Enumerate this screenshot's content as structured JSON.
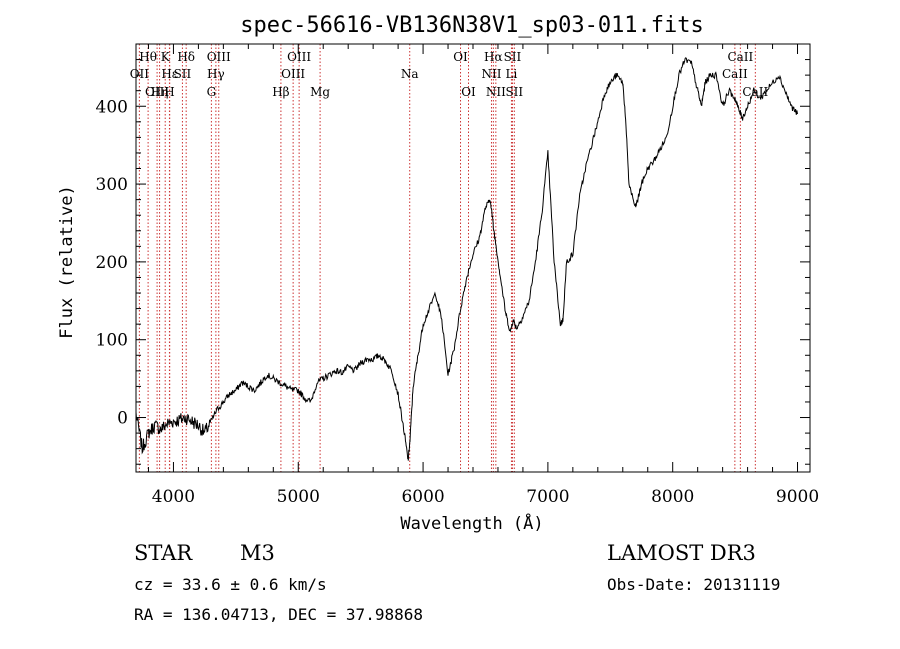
{
  "chart_data": {
    "type": "line",
    "title": "spec-56616-VB136N38V1_sp03-011.fits",
    "xlabel": "Wavelength (Å)",
    "ylabel": "Flux (relative)",
    "xlim": [
      3700,
      9100
    ],
    "ylim": [
      -70,
      480
    ],
    "xticks": [
      4000,
      5000,
      6000,
      7000,
      8000,
      9000
    ],
    "yticks": [
      0,
      100,
      200,
      300,
      400
    ],
    "grid": false,
    "line_color": "#000000",
    "marker_color": "#cc3333",
    "spectrum": {
      "x": [
        3700,
        3750,
        3800,
        3850,
        3900,
        3950,
        4000,
        4050,
        4100,
        4150,
        4200,
        4250,
        4300,
        4350,
        4400,
        4450,
        4500,
        4550,
        4600,
        4650,
        4700,
        4750,
        4800,
        4850,
        4900,
        4950,
        5000,
        5050,
        5100,
        5150,
        5200,
        5250,
        5300,
        5350,
        5400,
        5450,
        5500,
        5550,
        5600,
        5650,
        5700,
        5750,
        5800,
        5850,
        5880,
        5895,
        5920,
        5960,
        6000,
        6050,
        6100,
        6150,
        6200,
        6250,
        6300,
        6350,
        6400,
        6450,
        6500,
        6540,
        6563,
        6590,
        6620,
        6660,
        6700,
        6720,
        6750,
        6800,
        6850,
        6900,
        6950,
        7000,
        7050,
        7100,
        7120,
        7150,
        7200,
        7250,
        7300,
        7350,
        7400,
        7450,
        7500,
        7550,
        7600,
        7620,
        7650,
        7700,
        7720,
        7750,
        7800,
        7850,
        7900,
        7950,
        8000,
        8050,
        8100,
        8150,
        8200,
        8230,
        8260,
        8300,
        8350,
        8400,
        8450,
        8500,
        8530,
        8560,
        8600,
        8650,
        8700,
        8750,
        8800,
        8850,
        8900,
        8950,
        9000
      ],
      "y": [
        5,
        -40,
        -20,
        -10,
        -15,
        -8,
        -5,
        -3,
        0,
        -5,
        -10,
        -20,
        -5,
        10,
        20,
        30,
        35,
        45,
        40,
        35,
        45,
        55,
        50,
        45,
        40,
        35,
        35,
        25,
        20,
        45,
        50,
        55,
        60,
        58,
        65,
        60,
        70,
        75,
        75,
        80,
        72,
        60,
        30,
        -20,
        -55,
        -30,
        40,
        80,
        120,
        140,
        160,
        125,
        55,
        90,
        140,
        180,
        210,
        230,
        270,
        280,
        245,
        215,
        180,
        135,
        110,
        125,
        115,
        130,
        150,
        200,
        260,
        340,
        200,
        120,
        125,
        200,
        210,
        280,
        320,
        350,
        380,
        415,
        430,
        440,
        430,
        390,
        300,
        270,
        280,
        300,
        320,
        330,
        345,
        360,
        400,
        440,
        460,
        455,
        420,
        400,
        430,
        440,
        440,
        400,
        420,
        410,
        395,
        385,
        400,
        420,
        410,
        420,
        430,
        440,
        420,
        400,
        390
      ]
    },
    "line_markers": [
      {
        "label": "Hθ",
        "wl": 3797,
        "row": 0
      },
      {
        "label": "OII",
        "wl": 3727,
        "row": 1
      },
      {
        "label": "OIII",
        "wl": 3869,
        "row": 2
      },
      {
        "label": "Hε",
        "wl": 3970,
        "row": 1
      },
      {
        "label": "K",
        "wl": 3934,
        "row": 0
      },
      {
        "label": "Hη",
        "wl": 3889,
        "row": 2
      },
      {
        "label": "H",
        "wl": 3968,
        "row": 2
      },
      {
        "label": "SII",
        "wl": 4072,
        "row": 1
      },
      {
        "label": "Hδ",
        "wl": 4102,
        "row": 0
      },
      {
        "label": "OIII",
        "wl": 4363,
        "row": 0
      },
      {
        "label": "Hγ",
        "wl": 4340,
        "row": 1
      },
      {
        "label": "G",
        "wl": 4304,
        "row": 2
      },
      {
        "label": "Hβ",
        "wl": 4861,
        "row": 2
      },
      {
        "label": "OIII",
        "wl": 5007,
        "row": 0
      },
      {
        "label": "OIII",
        "wl": 4959,
        "row": 1
      },
      {
        "label": "Mg",
        "wl": 5175,
        "row": 2
      },
      {
        "label": "Na",
        "wl": 5893,
        "row": 1
      },
      {
        "label": "OI",
        "wl": 6300,
        "row": 0
      },
      {
        "label": "OI",
        "wl": 6364,
        "row": 2
      },
      {
        "label": "Hα",
        "wl": 6563,
        "row": 0
      },
      {
        "label": "NII",
        "wl": 6548,
        "row": 1
      },
      {
        "label": "NII",
        "wl": 6583,
        "row": 2
      },
      {
        "label": "SII",
        "wl": 6716,
        "row": 0
      },
      {
        "label": "Li",
        "wl": 6708,
        "row": 1
      },
      {
        "label": "SII",
        "wl": 6731,
        "row": 2
      },
      {
        "label": "CaII",
        "wl": 8542,
        "row": 0
      },
      {
        "label": "CaII",
        "wl": 8498,
        "row": 1
      },
      {
        "label": "CaII",
        "wl": 8662,
        "row": 2
      }
    ]
  },
  "info": {
    "class": "STAR",
    "subclass": "M3",
    "survey": "LAMOST DR3",
    "cz": "cz = 33.6 ± 0.6 km/s",
    "obs_date": "Obs-Date: 20131119",
    "coords": "RA = 136.04713, DEC =  37.98868"
  }
}
